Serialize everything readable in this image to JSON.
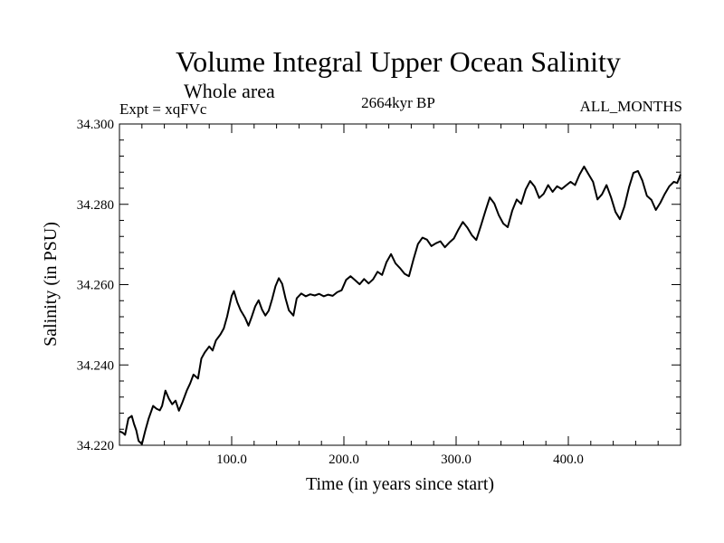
{
  "chart_data": {
    "type": "line",
    "title": "Volume Integral Upper Ocean Salinity",
    "subtitle": "Whole area",
    "expt_label": "Expt = xqFVc",
    "period_label": "2664kyr BP",
    "months_label": "ALL_MONTHS",
    "xlabel": "Time (in years since start)",
    "ylabel": "Salinity (in PSU)",
    "xlim": [
      0,
      500
    ],
    "ylim": [
      34.22,
      34.3
    ],
    "x_ticks": [
      100,
      200,
      300,
      400
    ],
    "x_tick_labels": [
      "100.0",
      "200.0",
      "300.0",
      "400.0"
    ],
    "y_ticks": [
      34.22,
      34.24,
      34.26,
      34.28,
      34.3
    ],
    "y_tick_labels": [
      "34.220",
      "34.240",
      "34.260",
      "34.280",
      "34.300"
    ],
    "series": [
      {
        "name": "salinity",
        "color": "#000000",
        "x": [
          0,
          3,
          5,
          8,
          11,
          13,
          15,
          17,
          20,
          23,
          26,
          30,
          33,
          36,
          38,
          41,
          44,
          47,
          50,
          53,
          56,
          60,
          63,
          66,
          70,
          73,
          76,
          80,
          83,
          86,
          90,
          93,
          96,
          100,
          102,
          105,
          108,
          112,
          115,
          118,
          121,
          124,
          127,
          130,
          133,
          136,
          139,
          142,
          145,
          148,
          151,
          155,
          158,
          162,
          166,
          170,
          174,
          178,
          182,
          186,
          190,
          194,
          198,
          202,
          206,
          210,
          214,
          218,
          222,
          226,
          230,
          234,
          238,
          242,
          246,
          250,
          254,
          258,
          262,
          266,
          270,
          274,
          278,
          282,
          286,
          290,
          294,
          298,
          302,
          306,
          310,
          314,
          318,
          322,
          326,
          330,
          334,
          338,
          342,
          346,
          350,
          354,
          358,
          362,
          366,
          370,
          374,
          378,
          382,
          386,
          390,
          394,
          398,
          402,
          406,
          410,
          414,
          418,
          422,
          426,
          430,
          434,
          438,
          442,
          446,
          450,
          454,
          458,
          462,
          466,
          470,
          474,
          478,
          482,
          486,
          490,
          494,
          497,
          500
        ],
        "values": [
          34.2235,
          34.2231,
          34.2226,
          34.2267,
          34.2273,
          34.2253,
          34.2237,
          34.2211,
          34.2203,
          34.2236,
          34.2266,
          34.2298,
          34.2291,
          34.2287,
          34.2298,
          34.2336,
          34.2316,
          34.2302,
          34.2311,
          34.2286,
          34.2306,
          34.2336,
          34.2354,
          34.2376,
          34.2366,
          34.2416,
          34.2431,
          34.2446,
          34.2436,
          34.2461,
          34.2476,
          34.2491,
          34.2521,
          34.2572,
          34.2584,
          34.2556,
          34.2536,
          34.2517,
          34.2498,
          34.2521,
          34.2546,
          34.2561,
          34.2538,
          34.2523,
          34.2535,
          34.2563,
          34.2596,
          34.2616,
          34.2602,
          34.2566,
          34.2536,
          34.2523,
          34.2566,
          34.2578,
          34.2571,
          34.2576,
          34.2573,
          34.2577,
          34.2571,
          34.2575,
          34.2572,
          34.2581,
          34.2586,
          34.2612,
          34.2621,
          34.2611,
          34.2601,
          34.2614,
          34.2603,
          34.2613,
          34.2632,
          34.2624,
          34.2656,
          34.2676,
          34.2653,
          34.2641,
          34.2627,
          34.2621,
          34.2663,
          34.2701,
          34.2717,
          34.2712,
          34.2696,
          34.2703,
          34.2708,
          34.2693,
          34.2705,
          34.2715,
          34.2737,
          34.2756,
          34.2742,
          34.2723,
          34.2711,
          34.2746,
          34.2782,
          34.2817,
          34.2802,
          34.2773,
          34.2752,
          34.2743,
          34.2784,
          34.2812,
          34.2801,
          34.2837,
          34.2858,
          34.2844,
          34.2816,
          34.2826,
          34.2848,
          34.2831,
          34.2845,
          34.2838,
          34.2847,
          34.2856,
          34.2848,
          34.2874,
          34.2894,
          34.2875,
          34.2856,
          34.2812,
          34.2825,
          34.2848,
          34.2818,
          34.2781,
          34.2763,
          34.2795,
          34.2842,
          34.2878,
          34.2883,
          34.2859,
          34.2821,
          34.2811,
          34.2786,
          34.2804,
          34.2826,
          34.2845,
          34.2856,
          34.2853,
          34.2874
        ]
      }
    ]
  }
}
